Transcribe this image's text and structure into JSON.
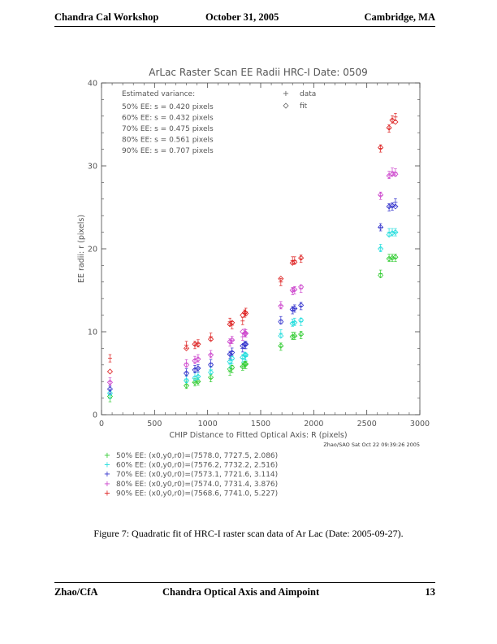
{
  "header": {
    "left": "Chandra Cal Workshop",
    "center": "October 31, 2005",
    "right": "Cambridge, MA"
  },
  "footer": {
    "left": "Zhao/CfA",
    "center": "Chandra Optical Axis and Aimpoint",
    "page": "13"
  },
  "caption": "Figure 7: Quadratic fit of HRC-I raster scan data of Ar Lac (Date: 2005-09-27).",
  "chart_data": {
    "type": "scatter",
    "title": "ArLac Raster Scan EE Radii   HRC-I   Date: 0509",
    "xlabel": "CHIP Distance to Fitted Optical Axis: R (pixels)",
    "ylabel": "EE radii: r (pixels)",
    "xlim": [
      0,
      3000
    ],
    "ylim": [
      0,
      40
    ],
    "x_ticks": [
      0,
      500,
      1000,
      1500,
      2000,
      2500,
      3000
    ],
    "y_ticks": [
      0,
      10,
      20,
      30,
      40
    ],
    "grid": false,
    "legend": {
      "placement": "top-center",
      "data_label": "data",
      "fit_label": "fit"
    },
    "variance_title": "Estimated variance:",
    "variance_lines": [
      "50% EE: s = 0.420 pixels",
      "60% EE: s = 0.432 pixels",
      "70% EE: s = 0.475 pixels",
      "80% EE: s = 0.561 pixels",
      "90% EE: s = 0.707 pixels"
    ],
    "credit": "Zhao/SAO Sat Oct 22 09:39:26 2005",
    "fit_lines": [
      "50% EE: (x0,y0,r0)=(7578.0, 7727.5, 2.086)",
      "60% EE: (x0,y0,r0)=(7576.2, 7732.2, 2.516)",
      "70% EE: (x0,y0,r0)=(7573.1, 7721.6, 3.114)",
      "80% EE: (x0,y0,r0)=(7574.0, 7731.4, 3.876)",
      "90% EE: (x0,y0,r0)=(7568.6, 7741.0, 5.227)"
    ],
    "x": [
      80,
      800,
      880,
      910,
      1030,
      1210,
      1230,
      1330,
      1350,
      1360,
      1690,
      1800,
      1820,
      1880,
      2630,
      2710,
      2740,
      2770
    ],
    "series": [
      {
        "color": "#33cc33",
        "data": [
          2.0,
          3.6,
          3.9,
          4.0,
          4.4,
          5.2,
          5.5,
          5.8,
          6.0,
          6.0,
          8.2,
          9.5,
          9.5,
          9.6,
          17.0,
          18.9,
          18.9,
          18.9
        ],
        "fit": [
          2.2,
          3.5,
          3.9,
          4.0,
          4.5,
          5.5,
          5.7,
          5.8,
          6.1,
          6.1,
          8.3,
          9.4,
          9.5,
          9.7,
          16.8,
          18.8,
          18.9,
          19.0
        ]
      },
      {
        "color": "#22dddd",
        "data": [
          2.4,
          4.3,
          4.6,
          4.7,
          5.4,
          6.1,
          6.6,
          6.8,
          7.1,
          7.0,
          9.8,
          11.1,
          11.2,
          11.2,
          20.1,
          22.0,
          22.0,
          22.0
        ],
        "fit": [
          2.6,
          4.1,
          4.4,
          4.6,
          5.1,
          6.4,
          6.8,
          6.9,
          7.2,
          7.2,
          9.5,
          11.0,
          11.1,
          11.4,
          20.0,
          21.7,
          21.9,
          22.0
        ]
      },
      {
        "color": "#3333cc",
        "data": [
          3.0,
          5.1,
          5.5,
          5.6,
          6.2,
          7.2,
          7.6,
          8.0,
          8.4,
          8.4,
          11.4,
          12.6,
          12.8,
          13.1,
          22.6,
          25.0,
          25.1,
          25.6
        ],
        "fit": [
          3.1,
          5.0,
          5.4,
          5.6,
          6.0,
          7.3,
          7.5,
          8.3,
          8.5,
          8.5,
          11.2,
          12.7,
          12.8,
          13.2,
          22.6,
          25.1,
          25.2,
          25.1
        ]
      },
      {
        "color": "#cc44cc",
        "data": [
          4.0,
          6.2,
          6.6,
          6.8,
          7.3,
          8.7,
          9.0,
          9.4,
          9.9,
          9.8,
          13.2,
          14.9,
          15.0,
          15.2,
          26.4,
          28.9,
          29.3,
          29.2
        ],
        "fit": [
          3.9,
          6.0,
          6.5,
          6.7,
          7.2,
          8.8,
          9.0,
          10.0,
          9.8,
          9.8,
          13.1,
          15.0,
          15.1,
          15.4,
          26.5,
          28.8,
          29.0,
          29.0
        ]
      },
      {
        "color": "#dd2222",
        "data": [
          6.8,
          8.4,
          8.4,
          8.6,
          9.4,
          11.2,
          10.8,
          11.3,
          12.2,
          12.4,
          16.0,
          18.6,
          18.6,
          18.8,
          32.1,
          34.5,
          35.6,
          35.9
        ],
        "fit": [
          5.2,
          8.0,
          8.5,
          8.5,
          9.1,
          10.9,
          11.1,
          12.0,
          12.3,
          12.2,
          16.4,
          18.3,
          18.4,
          18.9,
          32.2,
          34.6,
          35.5,
          35.3
        ]
      }
    ]
  }
}
